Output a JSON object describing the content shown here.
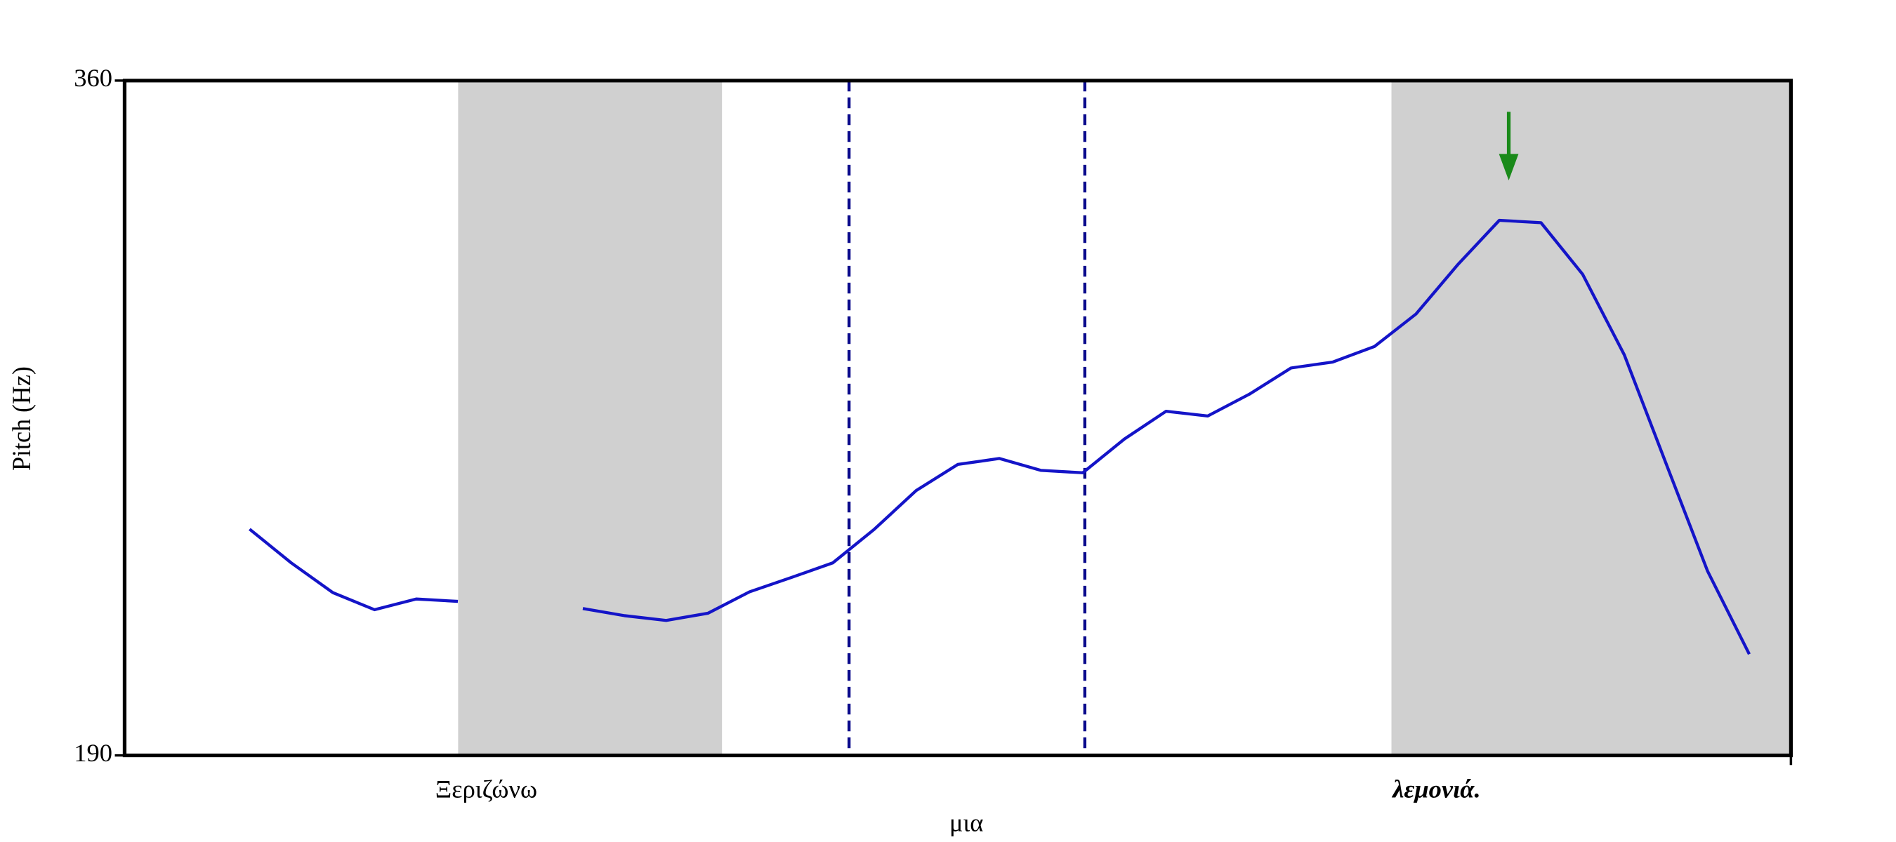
{
  "chart_data": {
    "type": "line",
    "y_label": "Pitch (Hz)",
    "ylim": [
      190,
      360
    ],
    "yticks": [
      190,
      360
    ],
    "word_labels": [
      "Ξεριζώνω",
      "μια",
      "λεμονιά."
    ],
    "series": [
      {
        "color": "#1414c8",
        "values": [
          null,
          null,
          null,
          247,
          238.5,
          231,
          226.7,
          229.4,
          228.8,
          null,
          null,
          227,
          225.2,
          224,
          225.8,
          231.2,
          234.8,
          238.5,
          247,
          256.7,
          263.3,
          264.8,
          261.8,
          261.2,
          269.7,
          276.7,
          275.5,
          281,
          287.6,
          289.1,
          293,
          301.2,
          313.6,
          324.8,
          324.2,
          311.2,
          290.9,
          263.6,
          236.4,
          215.5,
          null
        ]
      }
    ]
  }
}
